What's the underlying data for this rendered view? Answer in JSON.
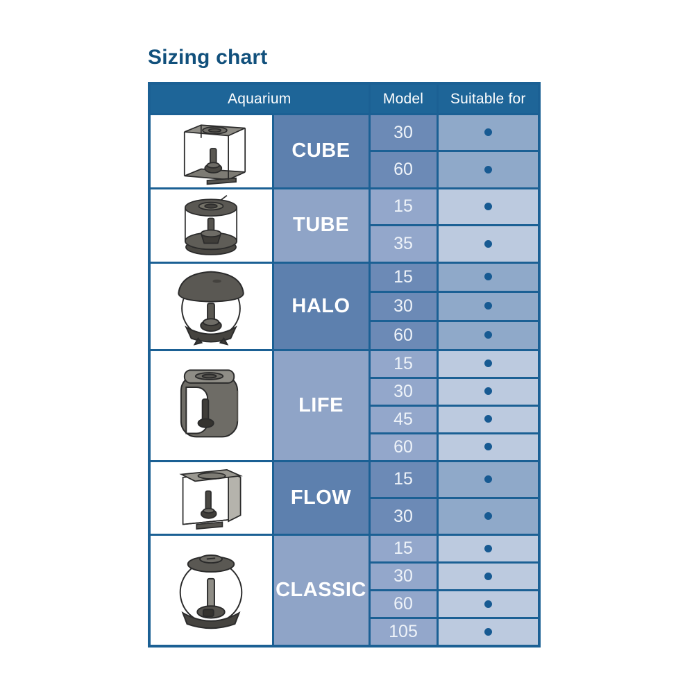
{
  "page": {
    "title": "Sizing chart"
  },
  "colors": {
    "title": "#11507c",
    "border": "#1b6094",
    "header_bg": "#1e6598",
    "dot": "#175a92",
    "name_dark": "#5d80ae",
    "model_dark": "#6c8ab6",
    "suit_dark": "#8fa9c9",
    "name_light": "#8fa4c7",
    "model_light": "#93a7cb",
    "suit_light": "#bccadf"
  },
  "table": {
    "headers": {
      "aquarium": "Aquarium",
      "model": "Model",
      "suitable_for": "Suitable for"
    },
    "groups": [
      {
        "name": "CUBE",
        "icon": "cube-aquarium-icon",
        "shade": "dark",
        "models": [
          {
            "model": "30",
            "suitable": true
          },
          {
            "model": "60",
            "suitable": true
          }
        ]
      },
      {
        "name": "TUBE",
        "icon": "tube-aquarium-icon",
        "shade": "light",
        "models": [
          {
            "model": "15",
            "suitable": true
          },
          {
            "model": "35",
            "suitable": true
          }
        ]
      },
      {
        "name": "HALO",
        "icon": "halo-aquarium-icon",
        "shade": "dark",
        "models": [
          {
            "model": "15",
            "suitable": true
          },
          {
            "model": "30",
            "suitable": true
          },
          {
            "model": "60",
            "suitable": true
          }
        ]
      },
      {
        "name": "LIFE",
        "icon": "life-aquarium-icon",
        "shade": "light",
        "models": [
          {
            "model": "15",
            "suitable": true
          },
          {
            "model": "30",
            "suitable": true
          },
          {
            "model": "45",
            "suitable": true
          },
          {
            "model": "60",
            "suitable": true
          }
        ]
      },
      {
        "name": "FLOW",
        "icon": "flow-aquarium-icon",
        "shade": "dark",
        "models": [
          {
            "model": "15",
            "suitable": true
          },
          {
            "model": "30",
            "suitable": true
          }
        ]
      },
      {
        "name": "CLASSIC",
        "icon": "classic-aquarium-icon",
        "shade": "light",
        "models": [
          {
            "model": "15",
            "suitable": true
          },
          {
            "model": "30",
            "suitable": true
          },
          {
            "model": "60",
            "suitable": true
          },
          {
            "model": "105",
            "suitable": true
          }
        ]
      }
    ]
  },
  "chart_data": {
    "type": "table",
    "title": "Sizing chart",
    "columns": [
      "Aquarium",
      "Model",
      "Suitable for"
    ],
    "rows": [
      {
        "aquarium": "CUBE",
        "model": 30,
        "suitable": true
      },
      {
        "aquarium": "CUBE",
        "model": 60,
        "suitable": true
      },
      {
        "aquarium": "TUBE",
        "model": 15,
        "suitable": true
      },
      {
        "aquarium": "TUBE",
        "model": 35,
        "suitable": true
      },
      {
        "aquarium": "HALO",
        "model": 15,
        "suitable": true
      },
      {
        "aquarium": "HALO",
        "model": 30,
        "suitable": true
      },
      {
        "aquarium": "HALO",
        "model": 60,
        "suitable": true
      },
      {
        "aquarium": "LIFE",
        "model": 15,
        "suitable": true
      },
      {
        "aquarium": "LIFE",
        "model": 30,
        "suitable": true
      },
      {
        "aquarium": "LIFE",
        "model": 45,
        "suitable": true
      },
      {
        "aquarium": "LIFE",
        "model": 60,
        "suitable": true
      },
      {
        "aquarium": "FLOW",
        "model": 15,
        "suitable": true
      },
      {
        "aquarium": "FLOW",
        "model": 30,
        "suitable": true
      },
      {
        "aquarium": "CLASSIC",
        "model": 15,
        "suitable": true
      },
      {
        "aquarium": "CLASSIC",
        "model": 30,
        "suitable": true
      },
      {
        "aquarium": "CLASSIC",
        "model": 60,
        "suitable": true
      },
      {
        "aquarium": "CLASSIC",
        "model": 105,
        "suitable": true
      }
    ]
  }
}
